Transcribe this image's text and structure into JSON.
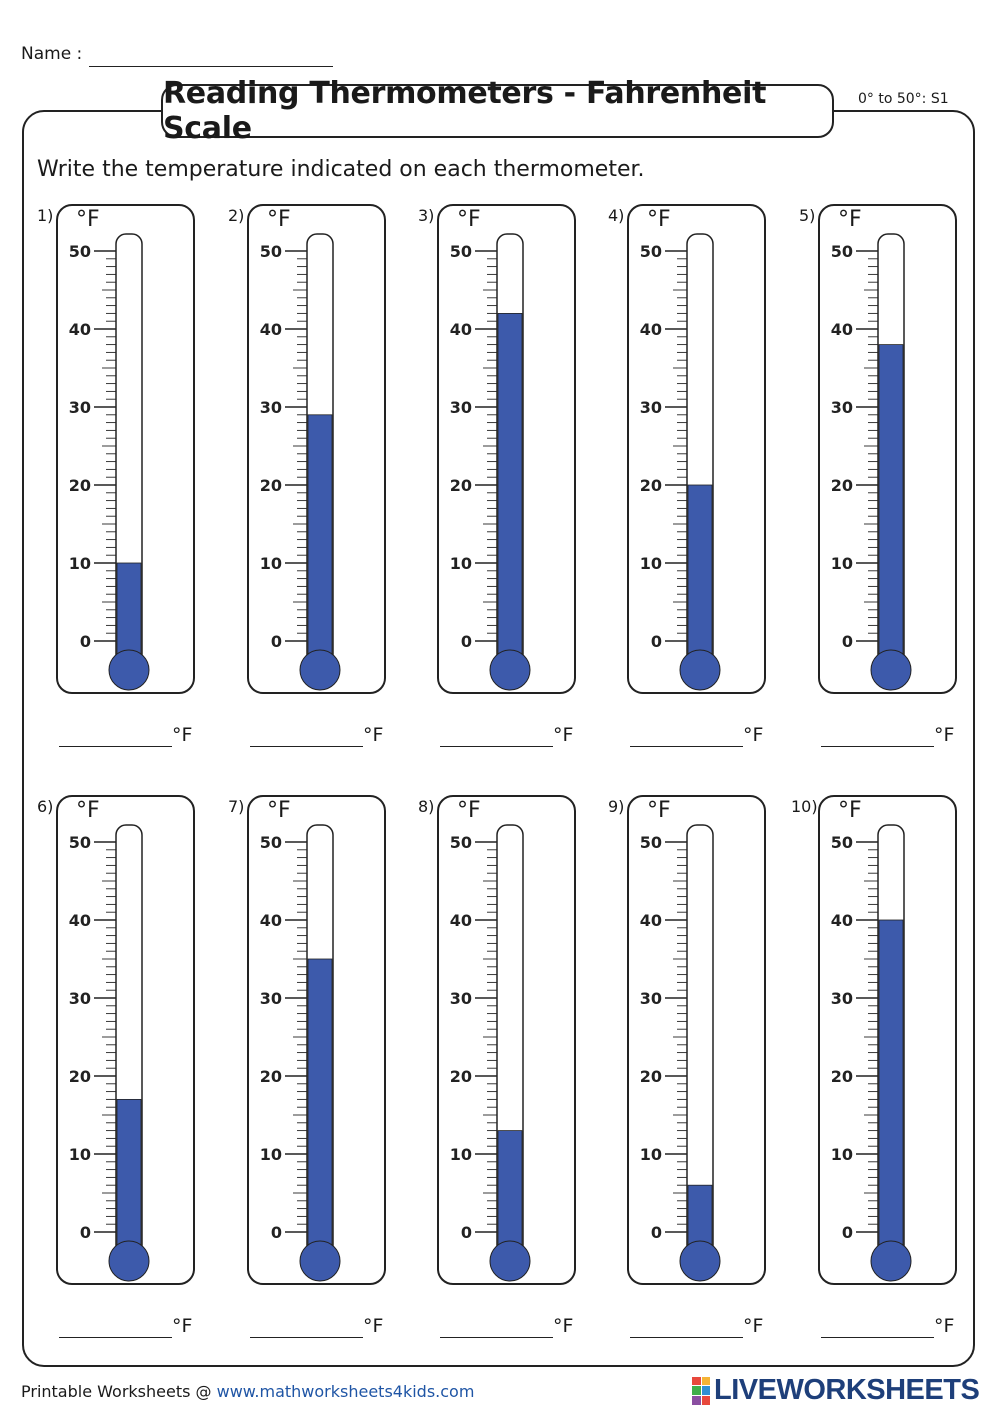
{
  "header": {
    "name_label": "Name :",
    "title": "Reading Thermometers - Fahrenheit Scale",
    "code": "0° to 50°: S1",
    "instruction": "Write the temperature indicated on each thermometer."
  },
  "unit": "°F",
  "scale": {
    "min": 0,
    "max": 50,
    "minor_step": 1,
    "major_step": 10,
    "labels": [
      "0",
      "10",
      "20",
      "30",
      "40",
      "50"
    ]
  },
  "thermometers": [
    {
      "number": "1)",
      "reading": 10
    },
    {
      "number": "2)",
      "reading": 29
    },
    {
      "number": "3)",
      "reading": 42
    },
    {
      "number": "4)",
      "reading": 20
    },
    {
      "number": "5)",
      "reading": 38
    },
    {
      "number": "6)",
      "reading": 17
    },
    {
      "number": "7)",
      "reading": 35
    },
    {
      "number": "8)",
      "reading": 13
    },
    {
      "number": "9)",
      "reading": 6
    },
    {
      "number": "10)",
      "reading": 40
    }
  ],
  "colors": {
    "mercury": "#3d5aab",
    "ink": "#222222",
    "link": "#1f55a5",
    "brand": "#1e3f7a"
  },
  "footer": {
    "prefix": "Printable Worksheets @ ",
    "link": "www.mathworksheets4kids.com",
    "brand": "LIVEWORKSHEETS"
  }
}
